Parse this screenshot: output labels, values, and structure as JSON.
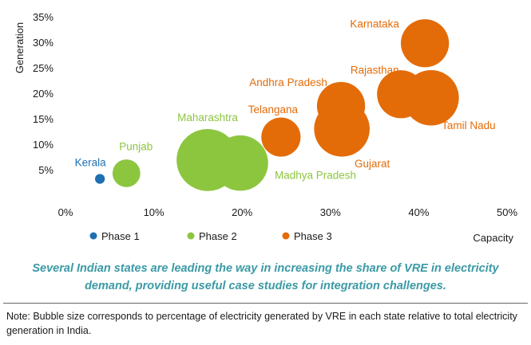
{
  "chart_data": {
    "type": "bubble",
    "xlabel": "Capacity",
    "ylabel": "Generation",
    "xlim": [
      0,
      50
    ],
    "ylim": [
      0,
      35
    ],
    "x_ticks": [
      "0%",
      "10%",
      "20%",
      "30%",
      "40%",
      "50%"
    ],
    "y_ticks": [
      "5%",
      "10%",
      "15%",
      "20%",
      "25%",
      "30%",
      "35%"
    ],
    "series": [
      {
        "name": "Phase 1",
        "color": "#1f6fb2",
        "points": [
          {
            "label": "Kerala",
            "x": 3.9,
            "y": 3.2,
            "size": 1
          }
        ]
      },
      {
        "name": "Phase 2",
        "color": "#8cc63f",
        "points": [
          {
            "label": "Punjab",
            "x": 6.9,
            "y": 4.3,
            "size": 2
          },
          {
            "label": "Maharashtra",
            "x": 16.1,
            "y": 6.9,
            "size": 10
          },
          {
            "label": "Madhya Pradesh",
            "x": 19.8,
            "y": 6.3,
            "size": 8
          }
        ]
      },
      {
        "name": "Phase 3",
        "color": "#e36c09",
        "points": [
          {
            "label": "Telangana",
            "x": 24.4,
            "y": 11.4,
            "size": 4
          },
          {
            "label": "Andhra Pradesh",
            "x": 31.2,
            "y": 17.5,
            "size": 6
          },
          {
            "label": "Gujarat",
            "x": 31.3,
            "y": 13.0,
            "size": 8
          },
          {
            "label": "Rajasthan",
            "x": 38.0,
            "y": 19.8,
            "size": 6
          },
          {
            "label": "Karnataka",
            "x": 40.7,
            "y": 29.8,
            "size": 6
          },
          {
            "label": "Tamil Nadu",
            "x": 41.4,
            "y": 19.1,
            "size": 8
          }
        ]
      }
    ]
  },
  "caption": "Several Indian states are leading the way in increasing the share of VRE in electricity demand, providing useful case studies for integration challenges.",
  "note": "Note: Bubble size corresponds to percentage of electricity generated by VRE in each state relative to total electricity generation in India."
}
